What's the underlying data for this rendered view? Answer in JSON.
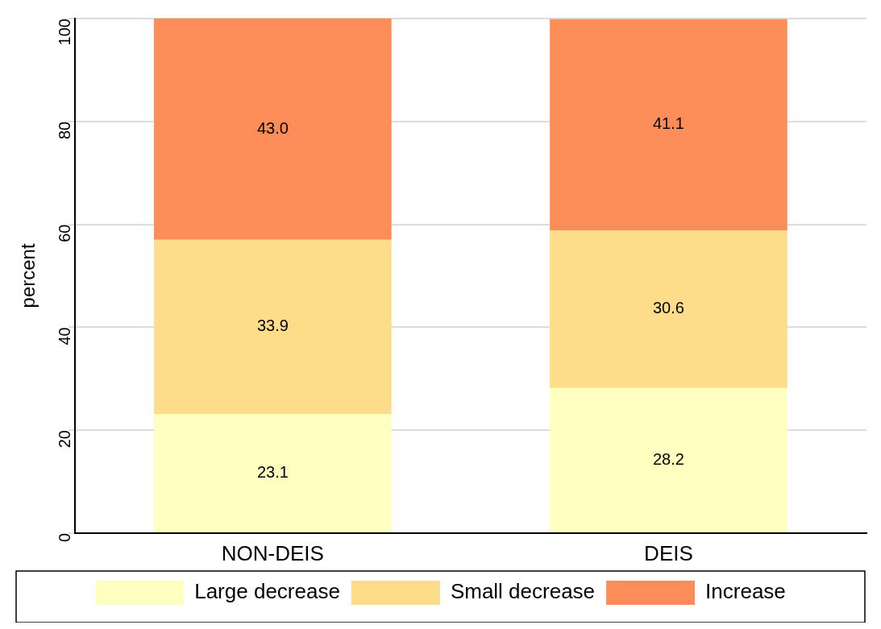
{
  "chart_data": {
    "type": "bar",
    "stacked": true,
    "ylabel": "percent",
    "categories": [
      "NON-DEIS",
      "DEIS"
    ],
    "series": [
      {
        "name": "Large decrease",
        "color": "#ffffbf",
        "values": [
          23.1,
          28.2
        ],
        "value_labels": [
          "23.1",
          "28.2"
        ]
      },
      {
        "name": "Small decrease",
        "color": "#fedd8a",
        "values": [
          33.9,
          30.6
        ],
        "value_labels": [
          "33.9",
          "30.6"
        ]
      },
      {
        "name": "Increase",
        "color": "#fc8d59",
        "values": [
          43.0,
          41.1
        ],
        "value_labels": [
          "43.0",
          "41.1"
        ]
      }
    ],
    "ylim": [
      0,
      100
    ],
    "yticks": [
      0,
      20,
      40,
      60,
      80,
      100
    ],
    "grid": "y",
    "legend": "bottom"
  }
}
